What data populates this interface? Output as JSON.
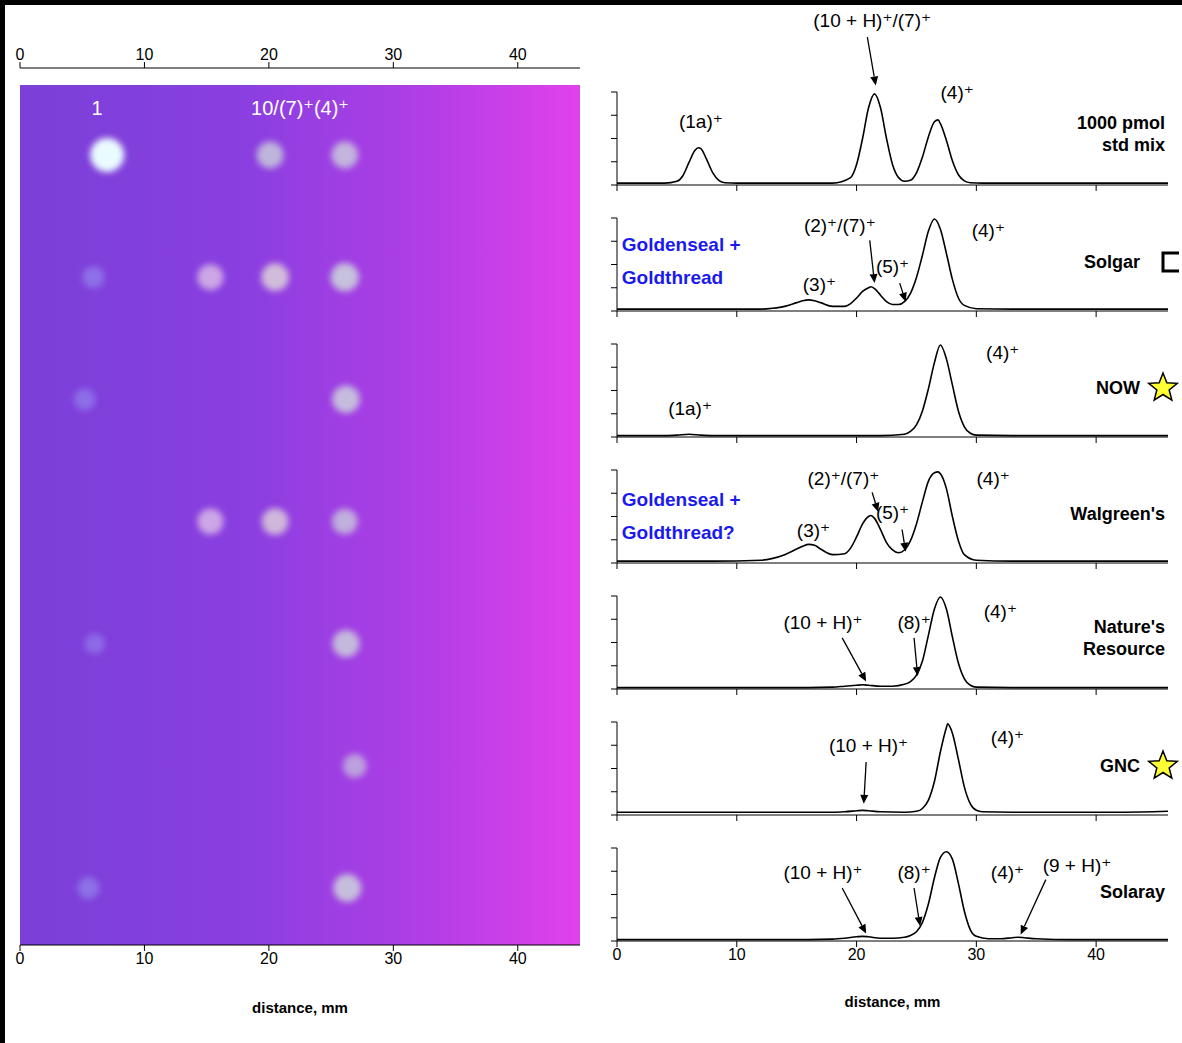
{
  "chart_data": [
    {
      "type": "scatter",
      "xlim": [
        0,
        45
      ],
      "xticks": [
        0,
        10,
        20,
        30,
        40
      ],
      "xlabel": "distance, mm",
      "tick_labels": "x",
      "annotations": [
        {
          "text": "1",
          "x": 6.2
        },
        {
          "text": "10/(7)⁺(4)⁺",
          "x": 22.5
        }
      ],
      "lanes": [
        {
          "x": [
            7,
            20.1,
            26.1
          ],
          "intensity": [
            100,
            55,
            55
          ],
          "colors": [
            "#eafcff",
            "#d2e6da",
            "#d2e6da"
          ]
        },
        {
          "x": [
            5.9,
            15.3,
            20.5,
            26.1
          ],
          "intensity": [
            25,
            50,
            60,
            65
          ],
          "colors": [
            "#9c9ef6",
            "#eed8ea",
            "#e8ead8",
            "#d2e8da"
          ]
        },
        {
          "x": [
            5.2,
            26.2
          ],
          "intensity": [
            22,
            60
          ],
          "colors": [
            "#9c9ef6",
            "#d2e8da"
          ]
        },
        {
          "x": [
            15.3,
            20.5,
            26.1
          ],
          "intensity": [
            50,
            55,
            48
          ],
          "colors": [
            "#eed8ea",
            "#e8ead8",
            "#d2e8da"
          ]
        },
        {
          "x": [
            6,
            26.2
          ],
          "intensity": [
            16,
            58
          ],
          "colors": [
            "#9c9ef6",
            "#d2e8da"
          ]
        },
        {
          "x": [
            26.9
          ],
          "intensity": [
            35
          ],
          "colors": [
            "#d2e8da"
          ]
        },
        {
          "x": [
            5.5,
            26.3
          ],
          "intensity": [
            25,
            62
          ],
          "colors": [
            "#9c9ef6",
            "#d2e8da"
          ]
        }
      ]
    },
    {
      "type": "line",
      "title": "1000 pmol std mix",
      "color": "#000000",
      "xlim": [
        0,
        46
      ],
      "xticks": [
        0,
        10,
        20,
        30,
        40
      ],
      "ylim": [
        0,
        100
      ],
      "yticks": [
        0,
        25,
        50,
        75,
        100
      ],
      "tick_labels": false,
      "x": [
        0,
        2,
        4,
        5,
        5.5,
        6,
        6.5,
        6.8,
        7,
        7.5,
        8,
        8.5,
        9,
        10,
        12,
        14,
        16,
        18,
        19.5,
        20,
        20.5,
        21,
        21.5,
        22,
        22.5,
        23,
        23.5,
        24,
        24.5,
        25,
        25.5,
        26,
        26.5,
        26.8,
        27,
        27.5,
        28,
        28.5,
        29,
        29.5,
        30.5,
        32,
        35,
        38,
        41,
        44,
        46
      ],
      "values": [
        2,
        2,
        2,
        4,
        10,
        24,
        37,
        40,
        39,
        27,
        13,
        5,
        2.5,
        2,
        2,
        2,
        2,
        2,
        8,
        22,
        50,
        83,
        98,
        83,
        50,
        22,
        8,
        4,
        5,
        13,
        30,
        52,
        68,
        70,
        66,
        48,
        26,
        11,
        4.5,
        2.5,
        2,
        2,
        2,
        2,
        2,
        2,
        2
      ],
      "annotations": [
        {
          "text": "(1a)⁺",
          "x": 7,
          "y": 68
        },
        {
          "text": "(10 + H)⁺/(7)⁺",
          "x": 21.3,
          "y": 177,
          "arrow": {
            "from": [
              20.9,
              159
            ],
            "to": [
              21.6,
              107
            ]
          }
        },
        {
          "text": "(4)⁺",
          "x": 28.4,
          "y": 100
        }
      ]
    },
    {
      "type": "line",
      "title": "Solgar",
      "marker": "bracket",
      "color": "#000000",
      "xlim": [
        0,
        46
      ],
      "xticks": [
        0,
        10,
        20,
        30,
        40
      ],
      "ylim": [
        0,
        100
      ],
      "yticks": [
        0,
        25,
        50,
        75,
        100
      ],
      "tick_labels": false,
      "x": [
        0,
        4,
        8,
        12,
        13,
        14,
        15,
        15.5,
        16,
        16.5,
        17,
        18,
        19,
        19.5,
        20,
        20.5,
        21,
        21.2,
        21.5,
        22,
        22.5,
        23,
        23.5,
        24,
        24.5,
        25,
        25.5,
        26,
        26.5,
        27,
        27.5,
        28,
        28.5,
        29,
        30,
        33,
        36,
        40,
        46
      ],
      "values": [
        2,
        2,
        2,
        2,
        3,
        5,
        9,
        11,
        12,
        11,
        9,
        5,
        5,
        8,
        14,
        21,
        25,
        26,
        24,
        17,
        10,
        7,
        7,
        10,
        19,
        36,
        60,
        86,
        99,
        88,
        62,
        34,
        14,
        6,
        2.5,
        2,
        2,
        2,
        2
      ],
      "annotations": [
        {
          "text": "(3)⁺",
          "x": 16.9,
          "y": 29
        },
        {
          "text": "(2)⁺/(7)⁺",
          "x": 18.6,
          "y": 92,
          "arrow": {
            "from": [
              21.1,
              76
            ],
            "to": [
              21.5,
              30
            ]
          }
        },
        {
          "text": "(5)⁺",
          "x": 23,
          "y": 48,
          "arrow": {
            "from": [
              23.6,
              30
            ],
            "to": [
              24.1,
              10
            ]
          }
        },
        {
          "text": "(4)⁺",
          "x": 31,
          "y": 87
        }
      ],
      "note": {
        "text": "Goldenseal + Goldthread",
        "x": 0.4,
        "y": 71,
        "color": "#1a1aee"
      }
    },
    {
      "type": "line",
      "title": "NOW",
      "marker": "star",
      "color": "#000000",
      "xlim": [
        0,
        46
      ],
      "xticks": [
        0,
        10,
        20,
        30,
        40
      ],
      "ylim": [
        0,
        100
      ],
      "yticks": [
        0,
        25,
        50,
        75,
        100
      ],
      "tick_labels": false,
      "x": [
        0,
        4,
        5,
        6,
        7,
        8,
        12,
        18,
        22,
        24,
        24.5,
        25,
        25.5,
        26,
        26.5,
        27,
        27.5,
        28,
        28.5,
        29,
        29.5,
        30,
        33,
        38,
        46
      ],
      "values": [
        1.5,
        1.5,
        2,
        3,
        2,
        1.5,
        1.5,
        1.5,
        1.5,
        3,
        6,
        13,
        28,
        52,
        80,
        99,
        84,
        56,
        28,
        11,
        4,
        2,
        1.5,
        1.5,
        1.5
      ],
      "annotations": [
        {
          "text": "(1a)⁺",
          "x": 6.1,
          "y": 31
        },
        {
          "text": "(4)⁺",
          "x": 32.2,
          "y": 91
        }
      ]
    },
    {
      "type": "line",
      "title": "Walgreen's",
      "color": "#000000",
      "xlim": [
        0,
        46
      ],
      "xticks": [
        0,
        10,
        20,
        30,
        40
      ],
      "ylim": [
        0,
        100
      ],
      "yticks": [
        0,
        25,
        50,
        75,
        100
      ],
      "tick_labels": false,
      "x": [
        0,
        4,
        8,
        12,
        13,
        14,
        15,
        15.5,
        16,
        16.5,
        17,
        18,
        19,
        19.5,
        20,
        20.5,
        21,
        21.2,
        21.5,
        22,
        22.5,
        23,
        23.5,
        24,
        24.5,
        25,
        25.5,
        26,
        26.5,
        26.8,
        27,
        27.5,
        28,
        28.5,
        29,
        30,
        33,
        38,
        46
      ],
      "values": [
        2,
        2,
        2,
        3,
        5,
        9,
        15,
        18,
        20,
        19,
        15,
        9,
        10,
        16,
        28,
        42,
        50,
        51,
        48,
        36,
        22,
        14,
        11,
        14,
        24,
        42,
        66,
        88,
        97,
        98,
        96,
        80,
        50,
        24,
        9,
        3,
        2,
        2,
        2
      ],
      "annotations": [
        {
          "text": "(3)⁺",
          "x": 16.4,
          "y": 35
        },
        {
          "text": "(2)⁺/(7)⁺",
          "x": 18.9,
          "y": 91,
          "arrow": {
            "from": [
              21.3,
              76
            ],
            "to": [
              21.8,
              55
            ]
          }
        },
        {
          "text": "(5)⁺",
          "x": 23,
          "y": 54,
          "arrow": {
            "from": [
              23.8,
              36
            ],
            "to": [
              24.1,
              12
            ]
          }
        },
        {
          "text": "(4)⁺",
          "x": 31.4,
          "y": 91
        }
      ],
      "note": {
        "text": "Goldenseal + Goldthread?",
        "x": 0.4,
        "y": 68,
        "color": "#1a1aee"
      }
    },
    {
      "type": "line",
      "title": "Nature's Resource",
      "color": "#000000",
      "xlim": [
        0,
        46
      ],
      "xticks": [
        0,
        10,
        20,
        30,
        40
      ],
      "ylim": [
        0,
        100
      ],
      "yticks": [
        0,
        25,
        50,
        75,
        100
      ],
      "tick_labels": false,
      "x": [
        0,
        4,
        8,
        12,
        16,
        18,
        19,
        20,
        20.5,
        21,
        22,
        23,
        24,
        24.5,
        25,
        25.5,
        26,
        26.5,
        27,
        27.5,
        28,
        28.5,
        29,
        29.5,
        30,
        33,
        38,
        46
      ],
      "values": [
        1.5,
        1.5,
        1.5,
        1.5,
        1.5,
        2,
        3,
        4,
        4.5,
        4,
        3,
        3,
        5,
        8,
        15,
        30,
        58,
        86,
        99,
        86,
        56,
        28,
        11,
        4,
        2,
        1.5,
        1.5,
        1.5
      ],
      "annotations": [
        {
          "text": "(10 + H)⁺",
          "x": 17.2,
          "y": 72,
          "arrow": {
            "from": [
              18.8,
              55
            ],
            "to": [
              20.8,
              8
            ]
          }
        },
        {
          "text": "(8)⁺",
          "x": 24.8,
          "y": 72,
          "arrow": {
            "from": [
              24.8,
              55
            ],
            "to": [
              25.1,
              14
            ]
          }
        },
        {
          "text": "(4)⁺",
          "x": 32,
          "y": 83
        }
      ]
    },
    {
      "type": "line",
      "title": "GNC",
      "marker": "star",
      "color": "#000000",
      "xlim": [
        0,
        46
      ],
      "xticks": [
        0,
        10,
        20,
        30,
        40
      ],
      "ylim": [
        0,
        100
      ],
      "yticks": [
        0,
        25,
        50,
        75,
        100
      ],
      "tick_labels": false,
      "x": [
        0,
        4,
        8,
        12,
        16,
        18,
        19,
        20,
        20.5,
        21,
        22,
        24,
        25,
        25.5,
        26,
        26.5,
        27,
        27.5,
        27.6,
        28,
        28.5,
        29,
        29.5,
        30,
        30.5,
        33,
        38,
        42,
        46
      ],
      "values": [
        3,
        3,
        3,
        3,
        3,
        3,
        3.5,
        4.5,
        5,
        4.5,
        3.5,
        3,
        4,
        7,
        16,
        36,
        68,
        94,
        98,
        88,
        60,
        30,
        12,
        5,
        3.5,
        3,
        3,
        3,
        4
      ],
      "annotations": [
        {
          "text": "(10 + H)⁺",
          "x": 21,
          "y": 75,
          "arrow": {
            "from": [
              20.8,
              57
            ],
            "to": [
              20.6,
              12
            ]
          }
        },
        {
          "text": "(4)⁺",
          "x": 32.6,
          "y": 83
        }
      ]
    },
    {
      "type": "line",
      "title": "Solaray",
      "color": "#000000",
      "xlim": [
        0,
        46
      ],
      "xticks": [
        0,
        10,
        20,
        30,
        40
      ],
      "ylim": [
        0,
        100
      ],
      "yticks": [
        0,
        25,
        50,
        75,
        100
      ],
      "tick_labels": "x",
      "xlabel": "distance, mm",
      "x": [
        0,
        4,
        8,
        12,
        16,
        18,
        19,
        20,
        20.5,
        21,
        22,
        23,
        24,
        24.5,
        25,
        25.5,
        26,
        26.5,
        27,
        27.5,
        28,
        28.5,
        29,
        29.5,
        30,
        31,
        32,
        33,
        33.5,
        34,
        35,
        38,
        42,
        46
      ],
      "values": [
        1.5,
        1.5,
        1.5,
        1.5,
        1.5,
        2,
        3,
        4.5,
        5,
        4.5,
        3,
        3,
        4,
        6,
        10,
        20,
        40,
        68,
        90,
        96,
        88,
        62,
        32,
        12,
        5,
        2.5,
        2.5,
        3.5,
        4,
        3.5,
        2.5,
        1.5,
        1.5,
        1.5
      ],
      "annotations": [
        {
          "text": "(10 + H)⁺",
          "x": 17.2,
          "y": 74,
          "arrow": {
            "from": [
              18.8,
              57
            ],
            "to": [
              20.8,
              8
            ]
          }
        },
        {
          "text": "(8)⁺",
          "x": 24.8,
          "y": 74,
          "arrow": {
            "from": [
              24.8,
              57
            ],
            "to": [
              25.3,
              16
            ]
          }
        },
        {
          "text": "(4)⁺",
          "x": 32.6,
          "y": 74
        },
        {
          "text": "(9 + H)⁺",
          "x": 38.4,
          "y": 81,
          "arrow": {
            "from": [
              35.8,
              66
            ],
            "to": [
              33.7,
              7
            ]
          }
        }
      ]
    }
  ]
}
